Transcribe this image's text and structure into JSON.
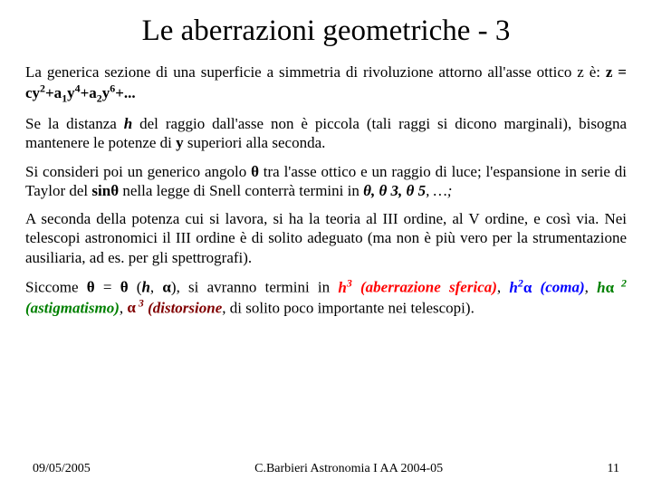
{
  "colors": {
    "background": "#ffffff",
    "text": "#000000",
    "red": "#ff0000",
    "blue": "#0000ff",
    "green": "#008000",
    "maroon": "#800000"
  },
  "typography": {
    "title_fontsize": 33,
    "body_fontsize": 17,
    "footer_fontsize": 14,
    "font_family": "Times New Roman"
  },
  "title": "Le aberrazioni geometriche - 3",
  "para1": {
    "a": "La generica sezione di una superficie a simmetria di rivoluzione attorno all'asse ottico z è: ",
    "formula_prefix": "z = cy",
    "formula_exp1": "2",
    "formula_mid1": "+a",
    "formula_sub1": "1",
    "formula_y1": "y",
    "formula_exp2": "4",
    "formula_mid2": "+a",
    "formula_sub2": "2",
    "formula_y2": "y",
    "formula_exp3": "6",
    "formula_end": "+..."
  },
  "para2": {
    "a": "Se la distanza ",
    "h": "h",
    "b": " del raggio dall'asse non è piccola (tali raggi si dicono marginali), bisogna mantenere le potenze di ",
    "y": "y",
    "c": " superiori alla seconda."
  },
  "para3": {
    "a": "Si consideri poi un generico angolo ",
    "theta1": "θ",
    "b": " tra l'asse ottico e un raggio di luce; l'espansione in serie di Taylor del ",
    "sin": "sin",
    "theta2": "θ",
    "c": " nella legge di Snell conterrà termini in ",
    "theta3": "θ",
    "comma1": ", ",
    "theta4": "θ",
    "exp3": " 3",
    "comma2": ", ",
    "theta5": "θ",
    "exp5": " 5",
    "end": ", …;"
  },
  "para4": "A seconda della potenza cui si lavora, si ha la teoria al III ordine, al V ordine, e così via. Nei telescopi astronomici il III ordine è di solito adeguato (ma non è più vero per la strumentazione ausiliaria, ad es. per gli spettrografi).",
  "para5": {
    "a": "Siccome ",
    "theta1": "θ",
    "eq": " = ",
    "theta2": "θ",
    "open": " (",
    "h1": "h",
    "comma": ", ",
    "alpha1": "α",
    "close": "), si avranno termini in ",
    "h3": "h",
    "h3_exp": "3",
    "ab_sf": " (aberrazione sferica)",
    "c2": ", ",
    "h2": "h",
    "h2_exp": "2",
    "alpha_c": "α",
    "coma": " (coma)",
    "c3": ", ",
    "h_a": "h",
    "alpha_a": "α",
    "a2_exp": " 2",
    "astig": " (astigmatismo)",
    "c4": ", ",
    "alpha_d": "α",
    "a3_exp": " 3",
    "dist": " (distorsione",
    "end": ", di solito poco importante nei telescopi)."
  },
  "footer": {
    "date": "09/05/2005",
    "center": "C.Barbieri Astronomia I AA 2004-05",
    "page": "11"
  }
}
